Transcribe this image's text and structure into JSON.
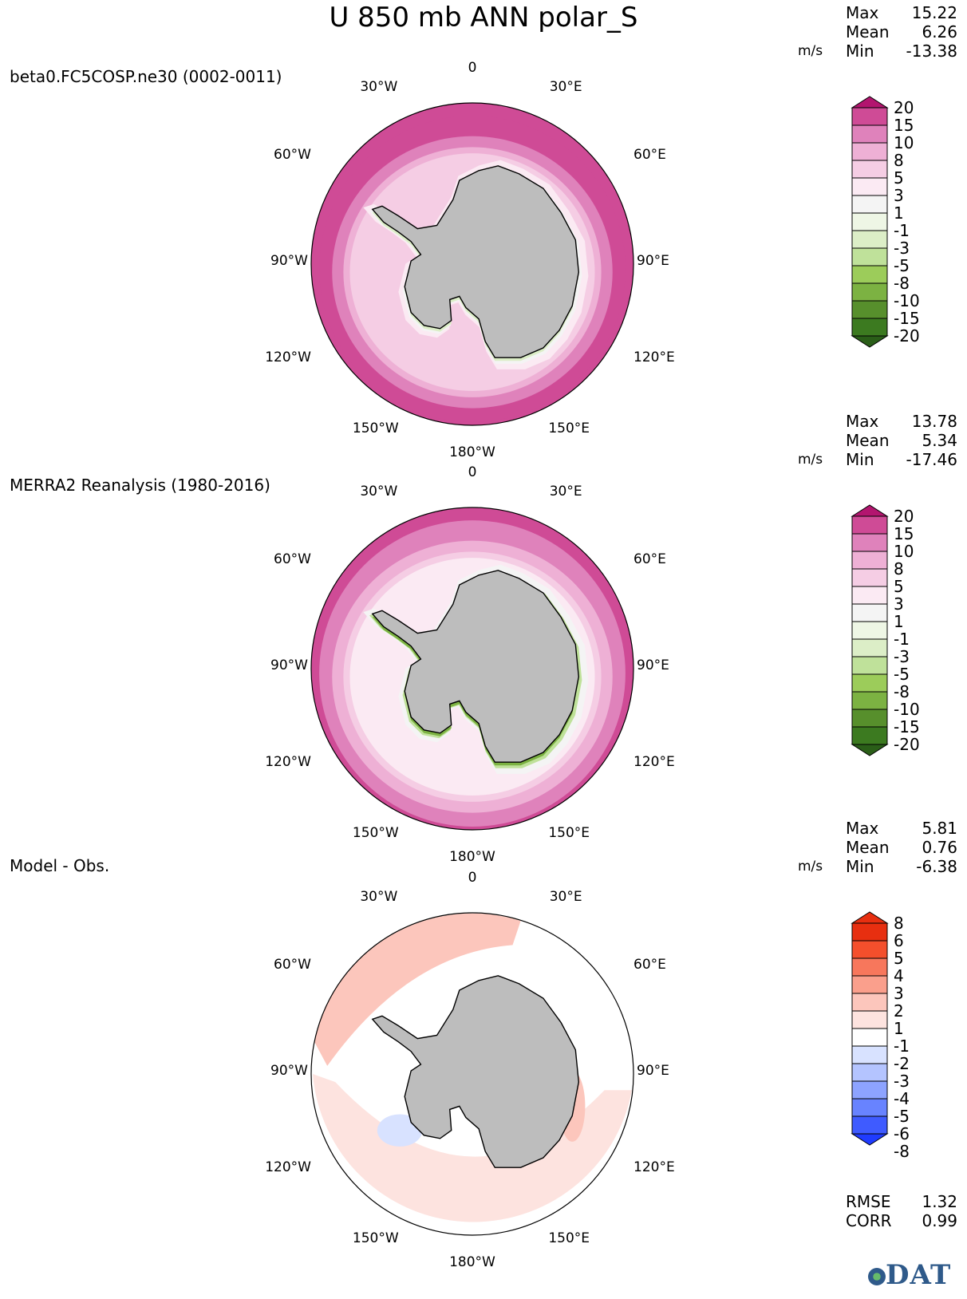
{
  "title": "U 850 mb ANN polar_S",
  "units": "m/s",
  "colors": {
    "land": "#bdbdbd",
    "coast": "#000000",
    "wind": [
      "#2a5e18",
      "#3c7a20",
      "#578f2c",
      "#7cb242",
      "#9ccc5a",
      "#bfe19a",
      "#dceec7",
      "#eef6e5",
      "#f4f4f4",
      "#fbeaf3",
      "#f5cde4",
      "#eeb0d5",
      "#df82bb",
      "#cf4b96",
      "#b3156f",
      "#8a0a5a"
    ],
    "diff": [
      "#1f3bff",
      "#3f5bff",
      "#6883ff",
      "#8da3ff",
      "#b4c4ff",
      "#d8e2ff",
      "#ffffff",
      "#fde3df",
      "#fcc6bc",
      "#fa9f8c",
      "#f7775c",
      "#f44f2c",
      "#e72f10"
    ]
  },
  "panels": [
    {
      "name": "model",
      "label": "beta0.FC5COSP.ne30 (0002-0011)",
      "stats": {
        "max_label": "Max",
        "max": "15.22",
        "mean_label": "Mean",
        "mean": "6.26",
        "min_label": "Min",
        "min": "-13.38"
      },
      "colorbar_ticks": [
        "20",
        "15",
        "10",
        "8",
        "5",
        "3",
        "1",
        "-1",
        "-3",
        "-5",
        "-8",
        "-10",
        "-15",
        "-20"
      ]
    },
    {
      "name": "obs",
      "label": "MERRA2 Reanalysis (1980-2016)",
      "stats": {
        "max_label": "Max",
        "max": "13.78",
        "mean_label": "Mean",
        "mean": "5.34",
        "min_label": "Min",
        "min": "-17.46"
      },
      "colorbar_ticks": [
        "20",
        "15",
        "10",
        "8",
        "5",
        "3",
        "1",
        "-1",
        "-3",
        "-5",
        "-8",
        "-10",
        "-15",
        "-20"
      ]
    },
    {
      "name": "diff",
      "label": "Model - Obs.",
      "stats": {
        "max_label": "Max",
        "max": "5.81",
        "mean_label": "Mean",
        "mean": "0.76",
        "min_label": "Min",
        "min": "-6.38"
      },
      "colorbar_ticks": [
        "8",
        "6",
        "5",
        "4",
        "3",
        "2",
        "1",
        "-1",
        "-2",
        "-3",
        "-4",
        "-5",
        "-6",
        "-8"
      ],
      "metrics": {
        "rmse_label": "RMSE",
        "rmse": "1.32",
        "corr_label": "CORR",
        "corr": "0.99"
      }
    }
  ],
  "lon_labels": {
    "top": "0",
    "bottom": "180°W",
    "l30": "30°W",
    "r30": "30°E",
    "l60": "60°W",
    "r60": "60°E",
    "l90": "90°W",
    "r90": "90°E",
    "l120": "120°W",
    "r120": "120°E",
    "l150": "150°W",
    "r150": "150°E"
  },
  "chart_data": [
    {
      "type": "heatmap",
      "title": "U 850 mb ANN polar_S",
      "panel": "beta0.FC5COSP.ne30 (0002-0011)",
      "projection": "polar stereographic, south pole",
      "units": "m/s",
      "max": 15.22,
      "mean": 6.26,
      "min": -13.38,
      "contour_levels": [
        -20,
        -15,
        -10,
        -8,
        -5,
        -3,
        -1,
        1,
        3,
        5,
        8,
        10,
        15,
        20
      ],
      "ring_levels_outer_to_inner": [
        10,
        8,
        5,
        3,
        1,
        -1,
        -5
      ]
    },
    {
      "type": "heatmap",
      "title": "U 850 mb ANN polar_S",
      "panel": "MERRA2 Reanalysis (1980-2016)",
      "projection": "polar stereographic, south pole",
      "units": "m/s",
      "max": 13.78,
      "mean": 5.34,
      "min": -17.46,
      "contour_levels": [
        -20,
        -15,
        -10,
        -8,
        -5,
        -3,
        -1,
        1,
        3,
        5,
        8,
        10,
        15,
        20
      ],
      "ring_levels_outer_to_inner": [
        10,
        8,
        5,
        3,
        1,
        -1,
        -10
      ]
    },
    {
      "type": "heatmap",
      "title": "U 850 mb ANN polar_S",
      "panel": "Model - Obs.",
      "projection": "polar stereographic, south pole",
      "units": "m/s",
      "max": 5.81,
      "mean": 0.76,
      "min": -6.38,
      "rmse": 1.32,
      "corr": 0.99,
      "contour_levels": [
        -8,
        -6,
        -5,
        -4,
        -3,
        -2,
        -1,
        1,
        2,
        3,
        4,
        5,
        6,
        8
      ]
    }
  ]
}
